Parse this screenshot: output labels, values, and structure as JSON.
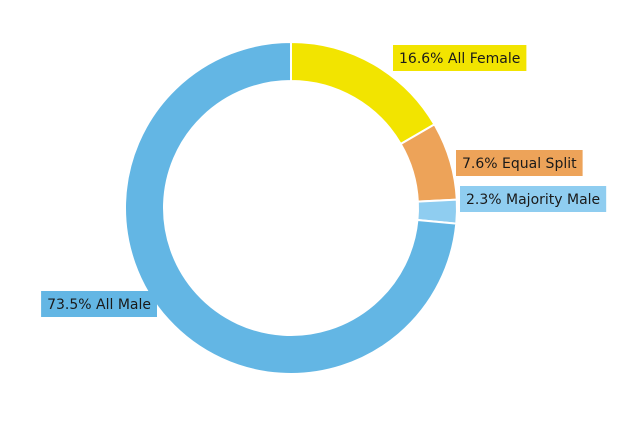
{
  "chart_data": {
    "type": "donut",
    "categories": [
      "All Female",
      "Equal Split",
      "Majority Male",
      "All Male"
    ],
    "values": [
      16.6,
      7.6,
      2.3,
      73.5
    ],
    "value_labels": [
      "16.6%",
      "7.6%",
      "2.3%",
      "73.5%"
    ],
    "colors": [
      "#f2e400",
      "#eda359",
      "#8fcdf0",
      "#63b6e4"
    ]
  }
}
